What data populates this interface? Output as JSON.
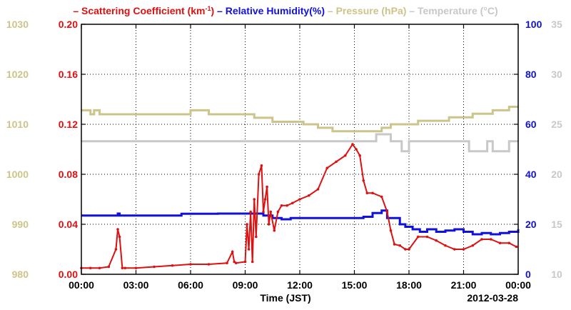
{
  "chart_data": {
    "type": "line",
    "legend": [
      {
        "label": "– Scattering Coefficient (km",
        "sup": "-1",
        "tail": ")",
        "color": "#dd1111"
      },
      {
        "label": "– Relative Humidity(%)",
        "color": "#1111dd"
      },
      {
        "label": "– Pressure (hPa)",
        "color": "#ccc48a"
      },
      {
        "label": "– Temperature (°C)",
        "color": "#c8c8c8"
      }
    ],
    "xlabel": "Time (JST)",
    "date_label": "2012-03-28",
    "x_ticks": [
      "00:00",
      "03:00",
      "06:00",
      "09:00",
      "12:00",
      "15:00",
      "18:00",
      "21:00",
      "00:00"
    ],
    "xlim": [
      0,
      24
    ],
    "grid": true,
    "axes": {
      "scattering": {
        "range": [
          0,
          0.2
        ],
        "ticks": [
          "0.00",
          "0.04",
          "0.08",
          "0.12",
          "0.16",
          "0.20"
        ],
        "color": "#dd1111"
      },
      "pressure": {
        "range": [
          980,
          1030
        ],
        "ticks": [
          "980",
          "990",
          "1000",
          "1010",
          "1020",
          "1030"
        ],
        "color": "#ccc48a"
      },
      "humidity": {
        "range": [
          0,
          100
        ],
        "ticks": [
          "0",
          "20",
          "40",
          "60",
          "80",
          "100"
        ],
        "color": "#1111dd"
      },
      "temperature": {
        "range": [
          10,
          35
        ],
        "ticks": [
          "10",
          "15",
          "20",
          "25",
          "30",
          "35"
        ],
        "color": "#c8c8c8"
      }
    },
    "series": [
      {
        "name": "Scattering Coefficient",
        "axis": "scattering",
        "color": "#dd1111",
        "markers": true,
        "x": [
          0,
          0.5,
          1,
          1.5,
          1.9,
          2.0,
          2.1,
          2.25,
          2.4,
          3,
          4,
          5,
          6,
          7,
          8,
          8.3,
          8.4,
          8.5,
          9.0,
          9.1,
          9.2,
          9.3,
          9.4,
          9.5,
          9.6,
          9.75,
          9.9,
          10.0,
          10.1,
          10.2,
          10.3,
          10.4,
          10.6,
          10.8,
          11.0,
          11.3,
          11.6,
          12,
          12.5,
          13,
          13.5,
          14,
          14.5,
          14.9,
          15.1,
          15.3,
          15.5,
          15.7,
          16,
          16.5,
          16.8,
          17.0,
          17.2,
          17.5,
          17.8,
          18,
          18.5,
          19,
          19.5,
          20,
          20.5,
          21,
          21.5,
          22,
          22.5,
          23,
          23.5,
          23.9
        ],
        "y": [
          0.005,
          0.005,
          0.005,
          0.006,
          0.02,
          0.036,
          0.03,
          0.005,
          0.005,
          0.005,
          0.006,
          0.007,
          0.008,
          0.008,
          0.009,
          0.018,
          0.01,
          0.009,
          0.01,
          0.04,
          0.02,
          0.05,
          0.01,
          0.06,
          0.03,
          0.08,
          0.087,
          0.05,
          0.06,
          0.07,
          0.04,
          0.05,
          0.035,
          0.05,
          0.055,
          0.055,
          0.057,
          0.06,
          0.063,
          0.068,
          0.085,
          0.09,
          0.095,
          0.104,
          0.1,
          0.095,
          0.075,
          0.065,
          0.065,
          0.062,
          0.05,
          0.035,
          0.024,
          0.023,
          0.02,
          0.02,
          0.03,
          0.03,
          0.027,
          0.023,
          0.02,
          0.02,
          0.023,
          0.028,
          0.028,
          0.025,
          0.025,
          0.022
        ]
      },
      {
        "name": "Relative Humidity",
        "axis": "humidity",
        "color": "#1111dd",
        "markers": false,
        "x": [
          0,
          1.9,
          2.0,
          2.1,
          5.3,
          5.5,
          7.5,
          9.5,
          10.0,
          10.5,
          11.0,
          11.5,
          12,
          13,
          14,
          14.5,
          15,
          15.5,
          16,
          16.5,
          16.8,
          17.2,
          17.5,
          17.8,
          18.2,
          18.6,
          19,
          19.5,
          20,
          20.5,
          21,
          21.5,
          22,
          22.5,
          23,
          23.5,
          24
        ],
        "y": [
          23.5,
          23.5,
          24.3,
          23.5,
          23.5,
          24.2,
          24.3,
          24.3,
          23.5,
          22.5,
          22.0,
          22.5,
          22.5,
          22.5,
          22.5,
          22.5,
          22.5,
          23.0,
          24.5,
          25.5,
          22.5,
          22.5,
          20.0,
          19.0,
          18.0,
          17.0,
          18.0,
          17.0,
          17.5,
          18.0,
          17.0,
          16.0,
          16.5,
          16.0,
          16.5,
          17.0,
          18.0
        ]
      },
      {
        "name": "Pressure",
        "axis": "pressure",
        "color": "#ccc48a",
        "markers": false,
        "x": [
          0,
          0.3,
          0.5,
          0.7,
          1.0,
          5.8,
          6.0,
          7.0,
          9.5,
          10.5,
          12.2,
          13,
          13.8,
          16.0,
          16.5,
          17,
          18.5,
          20.2,
          21.5,
          22.6,
          23.5,
          24
        ],
        "y": [
          1012.8,
          1012.8,
          1012.0,
          1012.8,
          1012.0,
          1012.0,
          1012.8,
          1012.0,
          1011.3,
          1010.5,
          1010.0,
          1009.3,
          1008.6,
          1008.6,
          1009.3,
          1010.0,
          1010.7,
          1011.4,
          1012.1,
          1012.8,
          1013.5,
          1013.5
        ]
      },
      {
        "name": "Temperature",
        "axis": "temperature",
        "color": "#c8c8c8",
        "markers": false,
        "x": [
          0,
          15.8,
          16.2,
          16.5,
          17.0,
          17.3,
          17.6,
          18.0,
          21.0,
          21.3,
          22.0,
          22.3,
          22.6,
          22.9,
          23.5,
          24
        ],
        "y": [
          23.3,
          23.3,
          24.0,
          24.0,
          23.3,
          23.3,
          22.3,
          23.3,
          23.3,
          22.3,
          22.3,
          23.3,
          22.3,
          22.3,
          23.3,
          23.3
        ]
      }
    ]
  }
}
